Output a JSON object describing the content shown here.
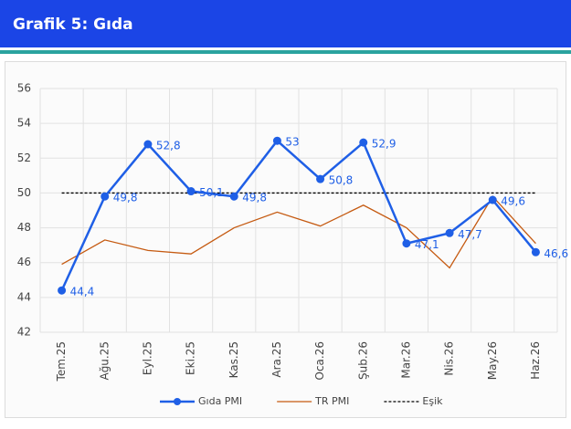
{
  "header": {
    "title": "Grafik 5: Gıda"
  },
  "chart_data": {
    "type": "line",
    "categories": [
      "Tem.25",
      "Ağu.25",
      "Eyl.25",
      "Eki.25",
      "Kas.25",
      "Ara.25",
      "Oca.26",
      "Şub.26",
      "Mar.26",
      "Nis.26",
      "May.26",
      "Haz.26"
    ],
    "series": [
      {
        "name": "Gıda PMI",
        "color": "#1f5fe6",
        "values": [
          44.4,
          49.8,
          52.8,
          50.1,
          49.8,
          53,
          50.8,
          52.9,
          47.1,
          47.7,
          49.6,
          46.6
        ],
        "value_labels": [
          "44,4",
          "49,8",
          "52,8",
          "50,1",
          "49,8",
          "53",
          "50,8",
          "52,9",
          "47,1",
          "47,7",
          "49,6",
          "46,6"
        ],
        "markers": true
      },
      {
        "name": "TR PMI",
        "color": "#c55a11",
        "values": [
          45.9,
          47.3,
          46.7,
          46.5,
          48.0,
          48.9,
          48.1,
          49.3,
          48.0,
          45.7,
          49.8,
          47.1
        ]
      },
      {
        "name": "Eşik",
        "color": "#000000",
        "dashed": true,
        "values": [
          50,
          50,
          50,
          50,
          50,
          50,
          50,
          50,
          50,
          50,
          50,
          50
        ]
      }
    ],
    "ylim": [
      42,
      56
    ],
    "yticks": [
      42,
      44,
      46,
      48,
      50,
      52,
      54,
      56
    ],
    "grid": true,
    "legend": "bottom"
  }
}
